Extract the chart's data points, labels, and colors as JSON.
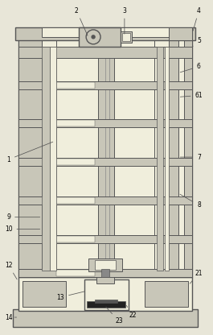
{
  "bg_color": "#e8e8e8",
  "line_color": "#555555",
  "fill_light": "#d0d0d0",
  "fill_white": "#f5f5f0",
  "fill_dark": "#888888",
  "figsize": [
    2.65,
    4.16
  ],
  "dpi": 100
}
